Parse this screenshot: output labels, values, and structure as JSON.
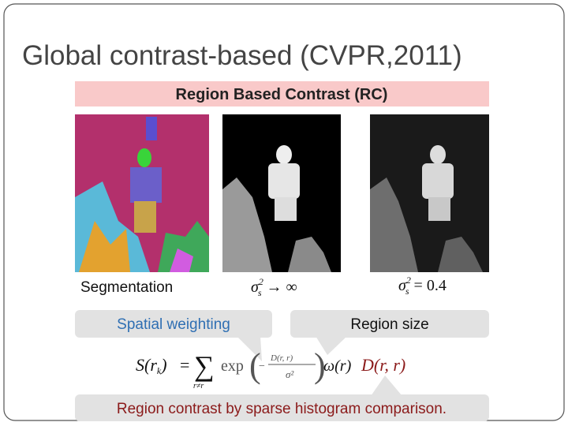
{
  "header": {
    "title": "Global contrast-based  (CVPR,2011)"
  },
  "banner": "Region Based Contrast (RC)",
  "panels": [
    {
      "caption": "Segmentation"
    },
    {
      "sigma": "σ",
      "sup": "2",
      "sub": "s",
      "rest": "→ ∞"
    },
    {
      "sigma": "σ",
      "sup": "2",
      "sub": "s",
      "rest": "= 0.4"
    }
  ],
  "callouts": {
    "spatial": "Spatial weighting",
    "size": "Region size",
    "contrast": "Region contrast by sparse histogram comparison."
  },
  "formula": {
    "lhs": "S(r",
    "lhs_sub": "k",
    "lhs_close": ")",
    "eq": "=",
    "sum": "∑",
    "sum_sub": "r≠r",
    "exp": "exp",
    "num": "D(r, r)",
    "den": "σ²",
    "weight": "ω(r)",
    "dist": "D(r, r)"
  }
}
